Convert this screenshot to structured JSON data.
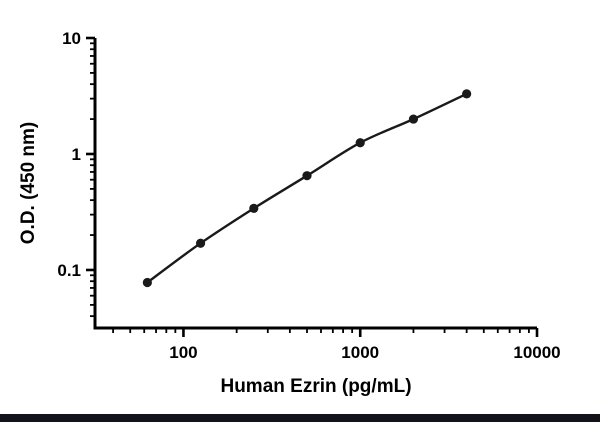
{
  "page": {
    "background": "#ffffff",
    "bottom_bar_color": "#12121a"
  },
  "chart_data": {
    "type": "scatter",
    "subtype": "log-log standard curve with fitted line",
    "x": [
      62.5,
      125,
      250,
      500,
      1000,
      2000,
      4000
    ],
    "y": [
      0.078,
      0.17,
      0.34,
      0.65,
      1.25,
      2.0,
      3.3
    ],
    "xlabel": "Human Ezrin (pg/mL)",
    "ylabel": "O.D. (450 nm)",
    "xscale": "log",
    "yscale": "log",
    "xlim": [
      31.6,
      10000
    ],
    "ylim": [
      0.0316,
      10
    ],
    "x_ticks": {
      "values": [
        100,
        1000,
        10000
      ],
      "labels": [
        "100",
        "1000",
        "10000"
      ]
    },
    "y_ticks": {
      "values": [
        0.1,
        1,
        10
      ],
      "labels": [
        "0.1",
        "1",
        "10"
      ]
    },
    "grid": false,
    "legend": "none",
    "line_color": "#1a1a1a",
    "marker_color": "#1a1a1a",
    "axis_color": "#000000"
  }
}
